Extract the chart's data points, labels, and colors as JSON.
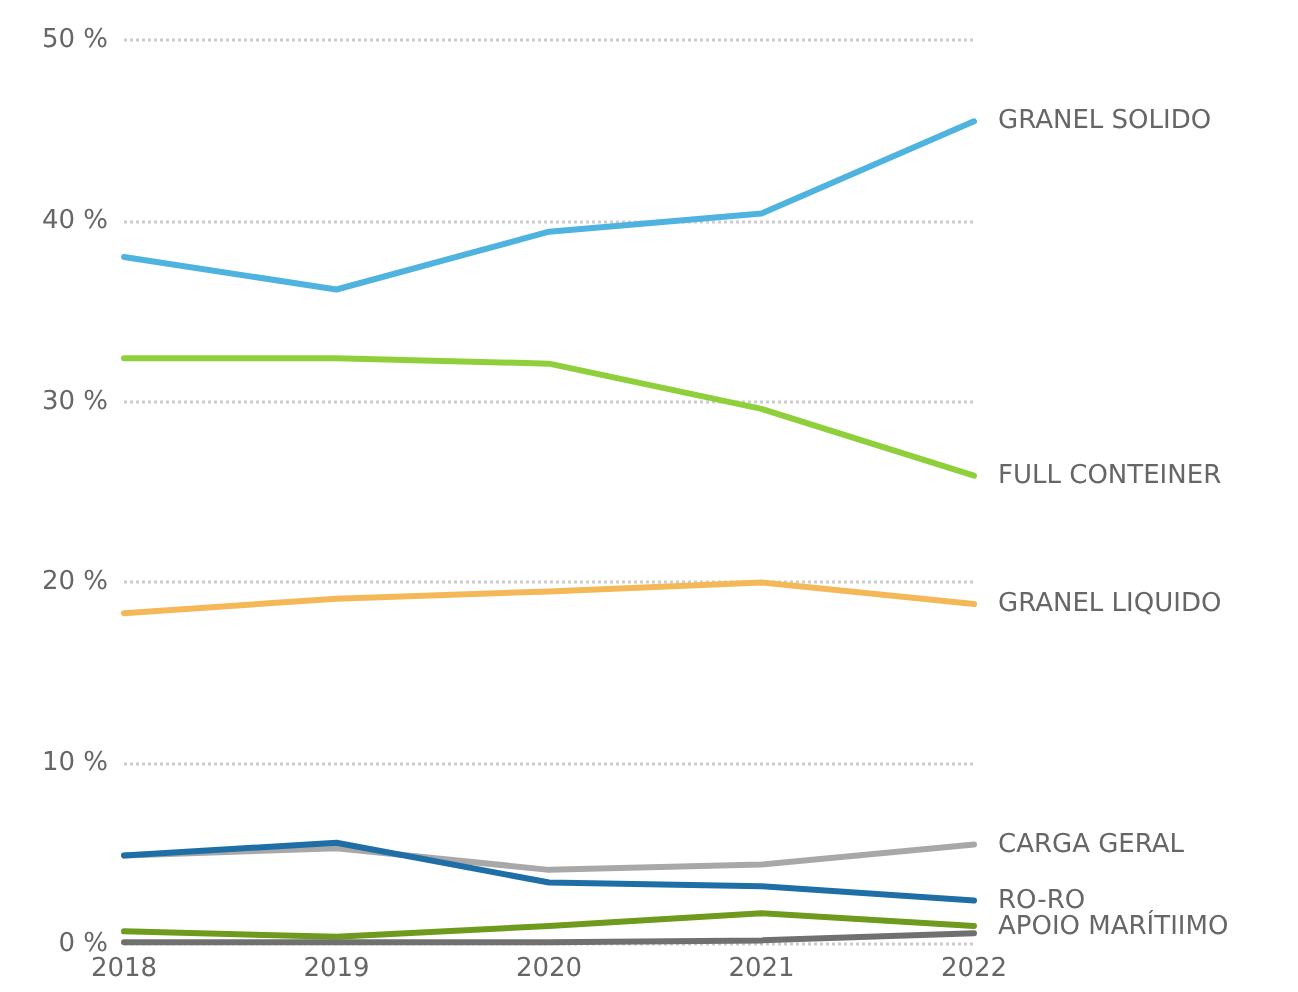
{
  "chart_data": {
    "type": "line",
    "categories": [
      "2018",
      "2019",
      "2020",
      "2021",
      "2022"
    ],
    "series": [
      {
        "name": "GRANEL SOLIDO",
        "color": "#4fb3df",
        "values": [
          38.0,
          36.2,
          39.4,
          40.4,
          45.5
        ]
      },
      {
        "name": "FULL CONTEINER",
        "color": "#8fcf3c",
        "values": [
          32.4,
          32.4,
          32.1,
          29.6,
          25.9
        ]
      },
      {
        "name": "GRANEL LIQUIDO",
        "color": "#f5b859",
        "values": [
          18.3,
          19.1,
          19.5,
          20.0,
          18.8
        ]
      },
      {
        "name": "CARGA GERAL",
        "color": "#a8a8a8",
        "values": [
          4.9,
          5.3,
          4.1,
          4.4,
          5.5
        ]
      },
      {
        "name": "RO-RO",
        "color": "#1f6fa6",
        "values": [
          4.9,
          5.6,
          3.4,
          3.2,
          2.4
        ]
      },
      {
        "name": "APOIO MARÍTIIMO",
        "color": "#6e9a1e",
        "values": [
          0.7,
          0.4,
          1.0,
          1.7,
          1.0
        ]
      },
      {
        "color": "#707070",
        "values": [
          0.1,
          0.1,
          0.1,
          0.2,
          0.6
        ]
      }
    ],
    "ylim": [
      0,
      50
    ],
    "yticks": [
      {
        "value": 0,
        "label": "0 %"
      },
      {
        "value": 10,
        "label": "10 %"
      },
      {
        "value": 20,
        "label": "20 %"
      },
      {
        "value": 30,
        "label": "30 %"
      },
      {
        "value": 40,
        "label": "40 %"
      },
      {
        "value": 50,
        "label": "50 %"
      }
    ],
    "grid": "y",
    "legend": false,
    "marker": "none",
    "line_style": "solid"
  }
}
